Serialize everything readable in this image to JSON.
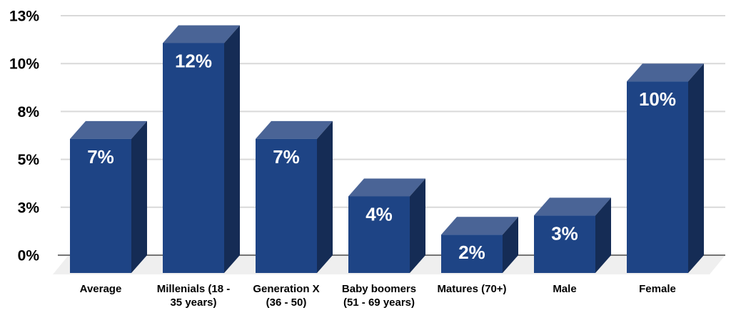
{
  "chart_data": {
    "type": "bar",
    "variant": "3d-column",
    "title": "",
    "xlabel": "",
    "ylabel": "",
    "legend": "none",
    "grid": true,
    "categories": [
      "Average",
      "Millenials (18 - 35 years)",
      "Generation X (36 - 50)",
      "Baby boomers (51 - 69 years)",
      "Matures (70+)",
      "Male",
      "Female"
    ],
    "category_label_lines": [
      [
        "Average"
      ],
      [
        "Millenials (18 -",
        "35 years)"
      ],
      [
        "Generation X",
        "(36 - 50)"
      ],
      [
        "Baby boomers",
        "(51 - 69 years)"
      ],
      [
        "Matures (70+)"
      ],
      [
        "Male"
      ],
      [
        "Female"
      ]
    ],
    "values": [
      7,
      12,
      7,
      4,
      2,
      3,
      10
    ],
    "data_labels": [
      "7%",
      "12%",
      "7%",
      "4%",
      "2%",
      "3%",
      "10%"
    ],
    "y_axis": {
      "min": 0,
      "max": 12.5,
      "tick_values": [
        0,
        2.5,
        5,
        7.5,
        10,
        12.5
      ],
      "tick_labels": [
        "0%",
        "3%",
        "5%",
        "8%",
        "10%",
        "13%"
      ]
    },
    "colors": {
      "background": "#ffffff",
      "bar_front": "#1e4485",
      "bar_top": "#4a6496",
      "bar_side": "#152c55",
      "floor": "#efefef",
      "gridline": "#d9d9d9",
      "axis_line": "#757575",
      "tick_label": "#000000",
      "category_label": "#000000",
      "data_label": "#ffffff"
    }
  }
}
